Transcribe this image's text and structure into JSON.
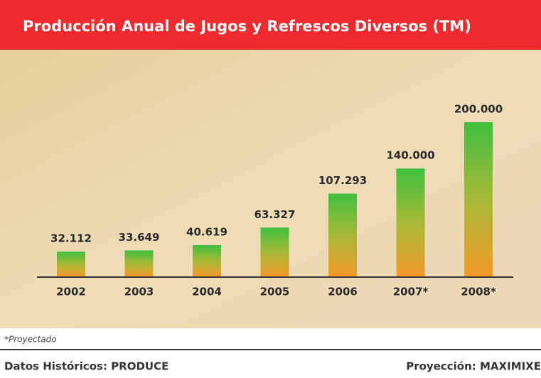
{
  "chart_data": {
    "type": "bar",
    "title": "Producción Anual de Jugos y Refrescos Diversos (TM)",
    "categories": [
      "2002",
      "2003",
      "2004",
      "2005",
      "2006",
      "2007*",
      "2008*"
    ],
    "values": [
      32112,
      33649,
      40619,
      63327,
      107293,
      140000,
      200000
    ],
    "value_labels": [
      "32.112",
      "33.649",
      "40.619",
      "63.327",
      "107.293",
      "140.000",
      "200.000"
    ],
    "footnote": "*Proyectado",
    "source_historical": "Datos Históricos: PRODUCE",
    "source_projection": "Proyección: MAXIMIXE"
  }
}
